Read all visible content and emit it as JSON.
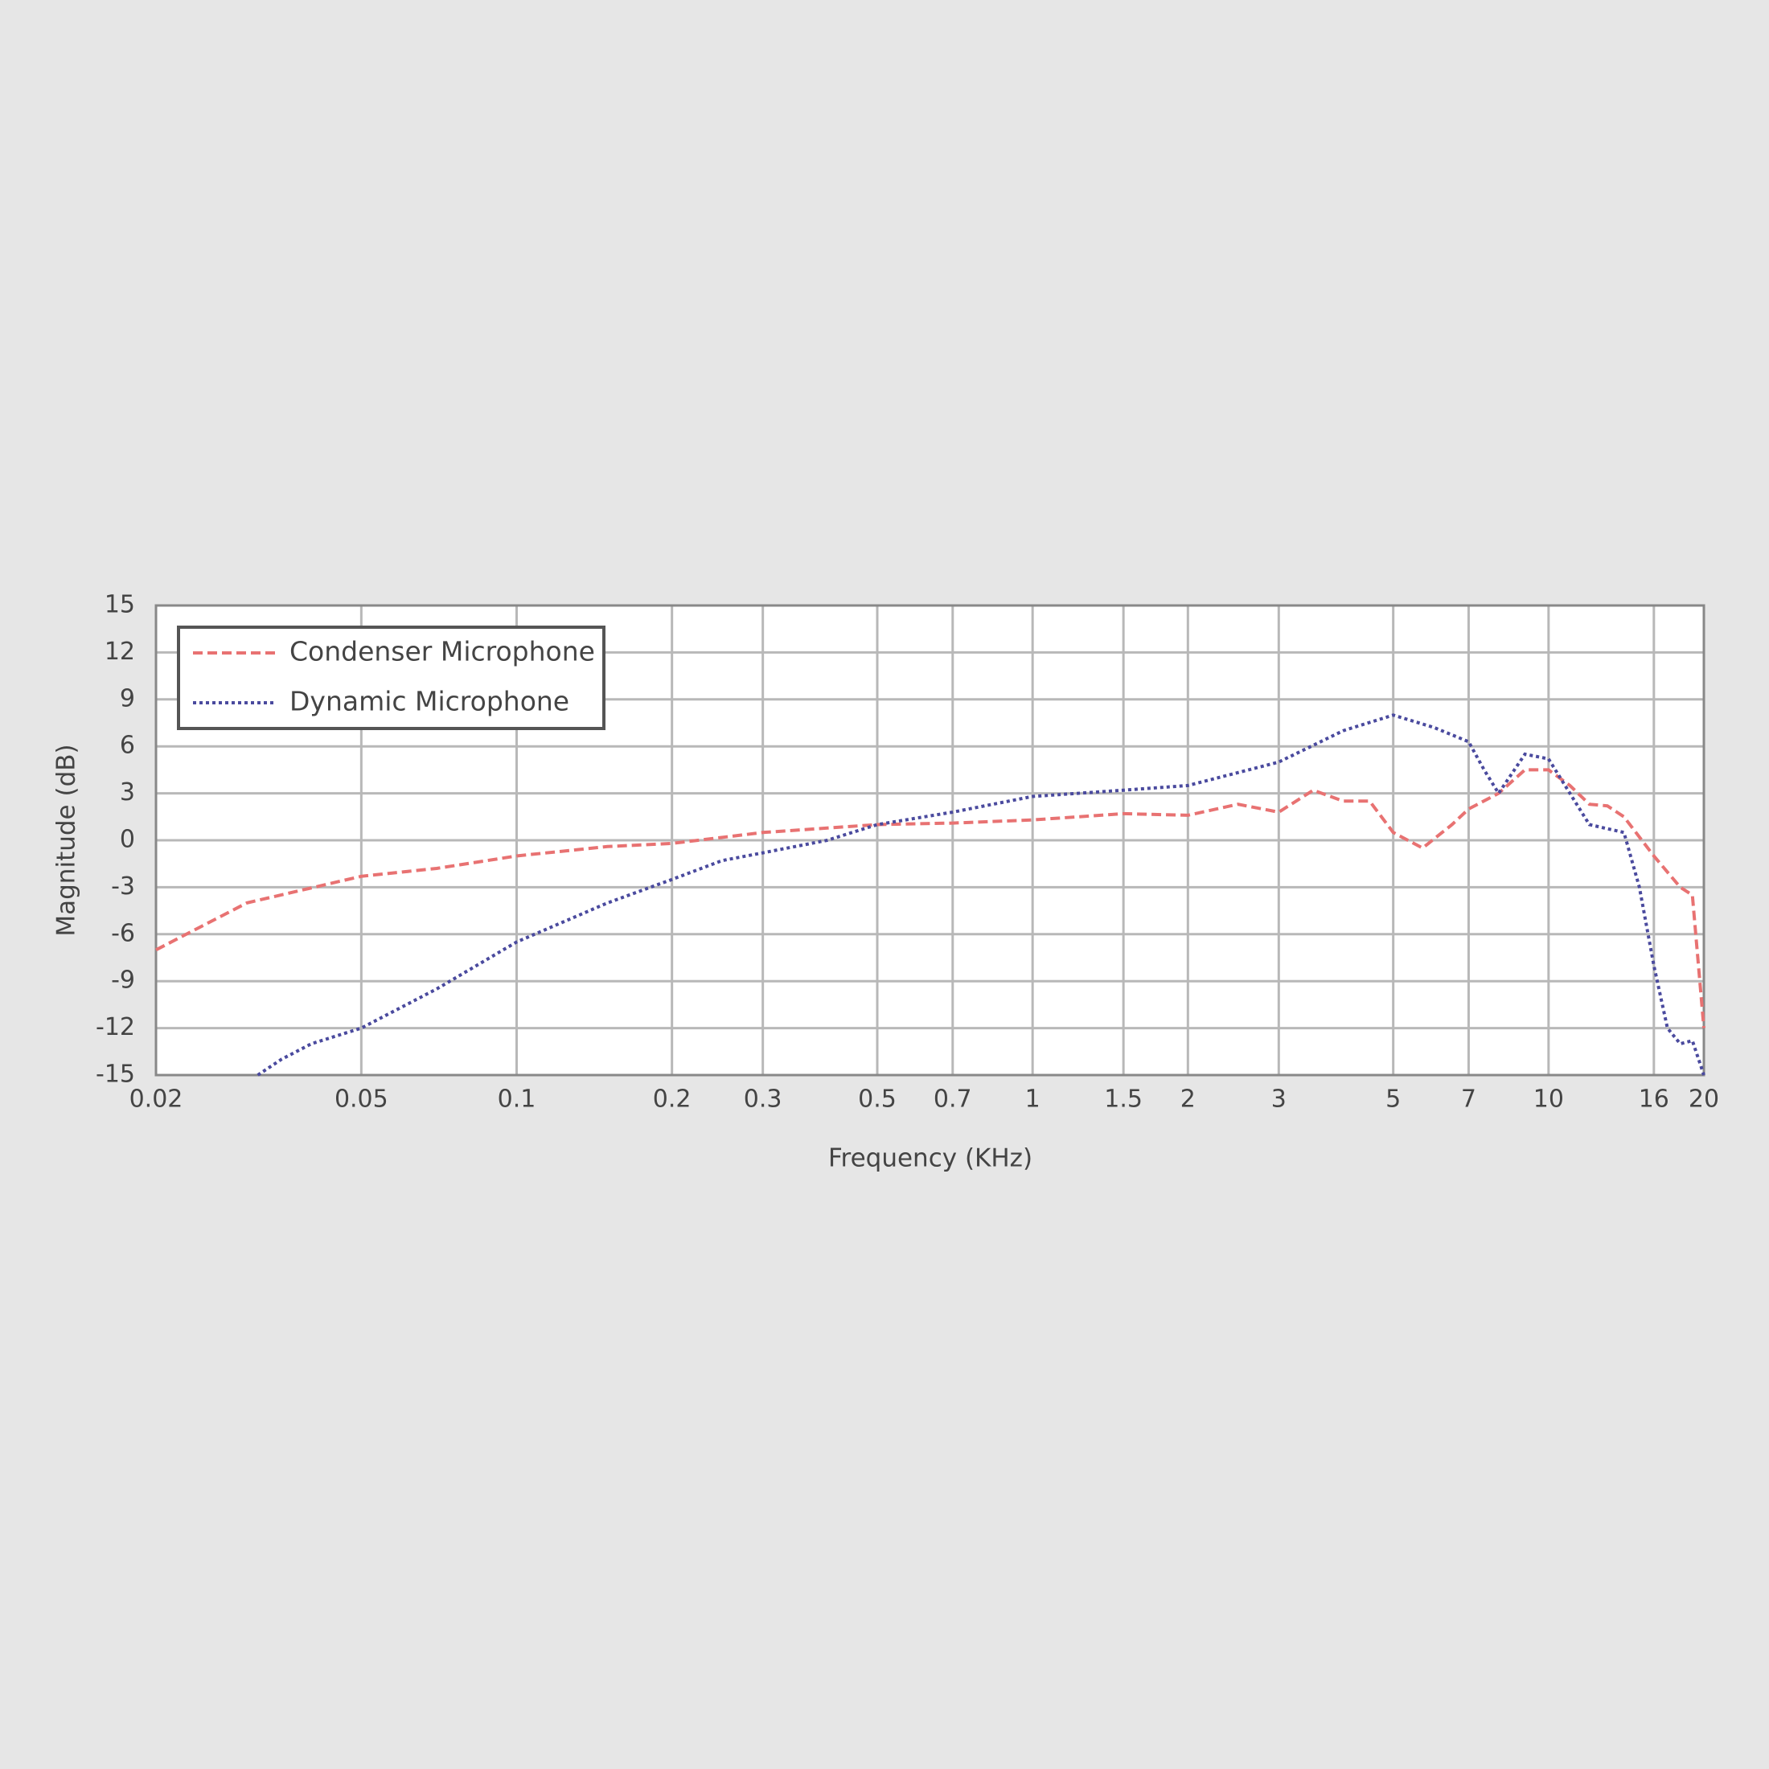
{
  "chart_data": {
    "type": "line",
    "x_label": "Frequency (KHz)",
    "y_label": "Magnitude (dB)",
    "log_x": true,
    "grid": true,
    "legend": "upper left",
    "xlim": [
      0.02,
      20
    ],
    "ylim": [
      -15,
      15
    ],
    "xticks": [
      0.02,
      0.05,
      0.1,
      0.2,
      0.3,
      0.5,
      0.7,
      1,
      1.5,
      2,
      3,
      5,
      7,
      10,
      16,
      20
    ],
    "yticks": [
      -15,
      -12,
      -9,
      -6,
      -3,
      0,
      3,
      6,
      9,
      12,
      15
    ],
    "series": [
      {
        "name": "Condenser Microphone",
        "color": "#e87272",
        "dash": "dashed",
        "x": [
          0.02,
          0.03,
          0.05,
          0.07,
          0.1,
          0.15,
          0.2,
          0.3,
          0.5,
          0.7,
          1,
          1.5,
          2,
          2.5,
          3,
          3.5,
          4,
          4.5,
          5,
          5.7,
          6.5,
          7,
          8,
          9,
          10,
          11,
          12,
          13,
          14,
          16,
          18,
          19,
          20
        ],
        "values": [
          -7,
          -4,
          -2.3,
          -1.8,
          -1,
          -0.4,
          -0.2,
          0.5,
          1,
          1.1,
          1.3,
          1.7,
          1.6,
          2.3,
          1.8,
          3.2,
          2.5,
          2.5,
          0.5,
          -0.5,
          1,
          2,
          3,
          4.5,
          4.5,
          3.5,
          2.3,
          2.2,
          1.5,
          -1,
          -3,
          -3.5,
          -12
        ]
      },
      {
        "name": "Dynamic Microphone",
        "color": "#4a4a9e",
        "dash": "dotted",
        "x": [
          0.0315,
          0.035,
          0.04,
          0.05,
          0.07,
          0.1,
          0.15,
          0.2,
          0.25,
          0.3,
          0.4,
          0.5,
          0.7,
          1,
          1.5,
          2,
          3,
          4,
          5,
          6,
          7,
          7.5,
          8,
          9,
          10,
          11,
          12,
          14,
          15,
          16,
          17,
          18,
          19,
          20
        ],
        "values": [
          -15,
          -14,
          -13,
          -12,
          -9.5,
          -6.5,
          -4,
          -2.5,
          -1.3,
          -0.8,
          0,
          1,
          1.8,
          2.8,
          3.2,
          3.5,
          5,
          7,
          8,
          7.2,
          6.3,
          4.5,
          3,
          5.5,
          5.2,
          3,
          1,
          0.5,
          -3,
          -8,
          -12,
          -13,
          -12.8,
          -15
        ]
      }
    ]
  }
}
